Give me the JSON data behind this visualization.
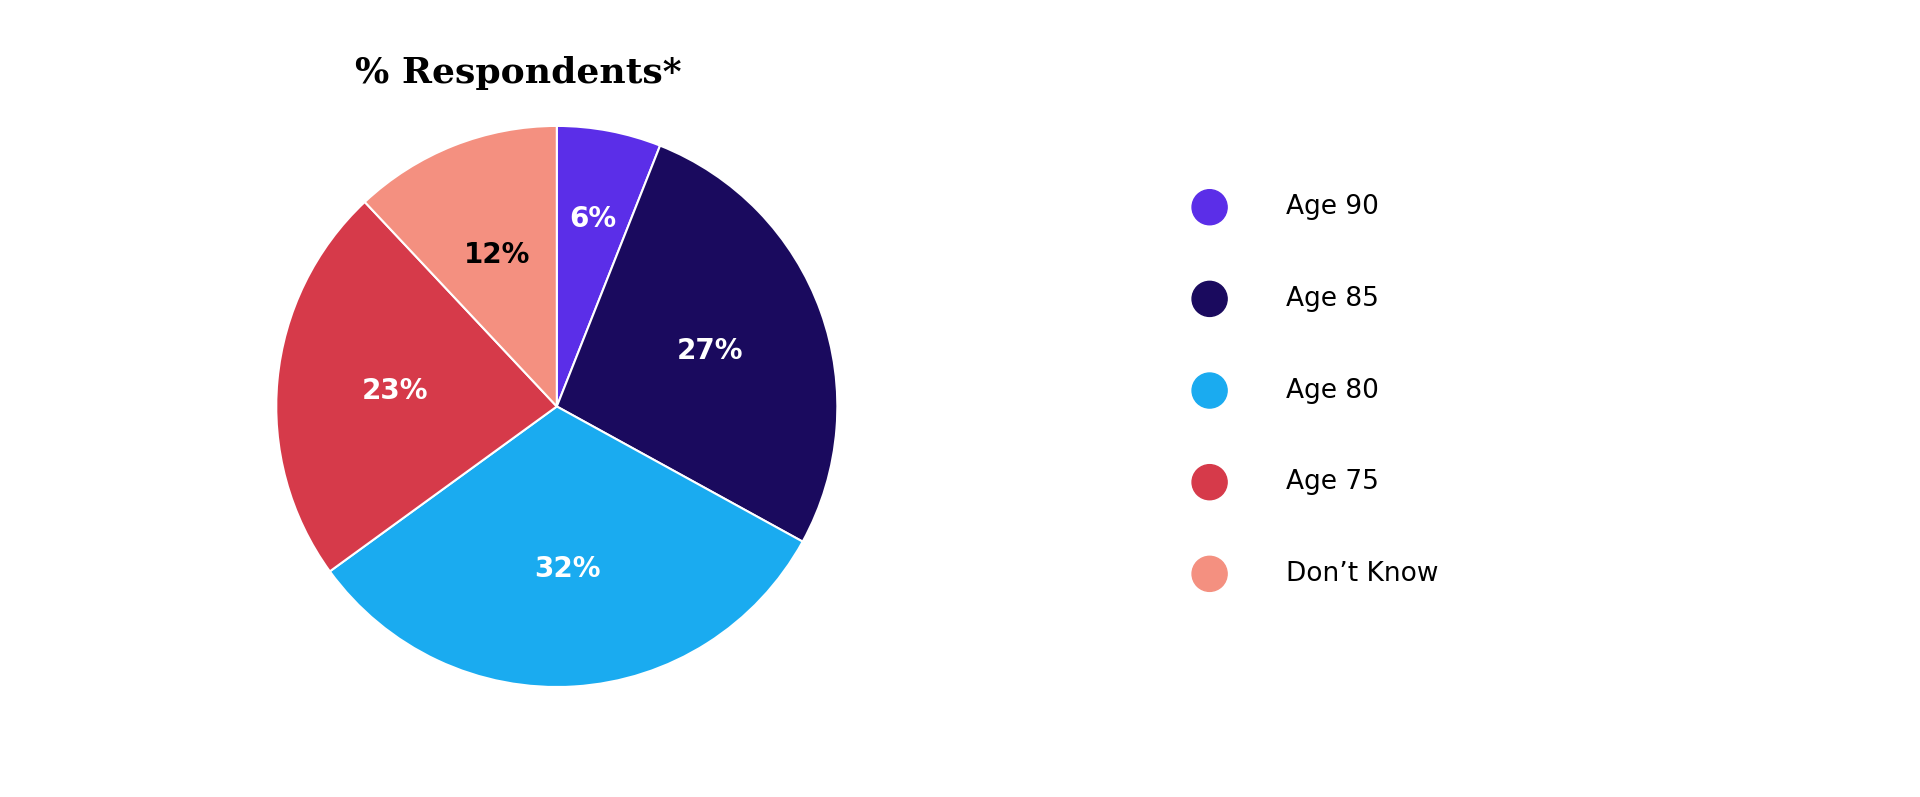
{
  "title": "% Respondents*",
  "title_fontsize": 26,
  "title_fontweight": "bold",
  "slices": [
    {
      "label": "Age 90",
      "value": 6,
      "color": "#5B2EE8",
      "pct_color": "#ffffff"
    },
    {
      "label": "Age 85",
      "value": 27,
      "color": "#1A0A5E",
      "pct_color": "#ffffff"
    },
    {
      "label": "Age 80",
      "value": 32,
      "color": "#1AABF0",
      "pct_color": "#ffffff"
    },
    {
      "label": "Age 75",
      "value": 23,
      "color": "#D63A4A",
      "pct_color": "#ffffff"
    },
    {
      "label": "Don’t Know",
      "value": 12,
      "color": "#F49080",
      "pct_color": "#000000"
    }
  ],
  "label_fontsize": 20,
  "label_fontweight": "bold",
  "legend_fontsize": 19,
  "background_color": "#ffffff",
  "startangle": 90
}
